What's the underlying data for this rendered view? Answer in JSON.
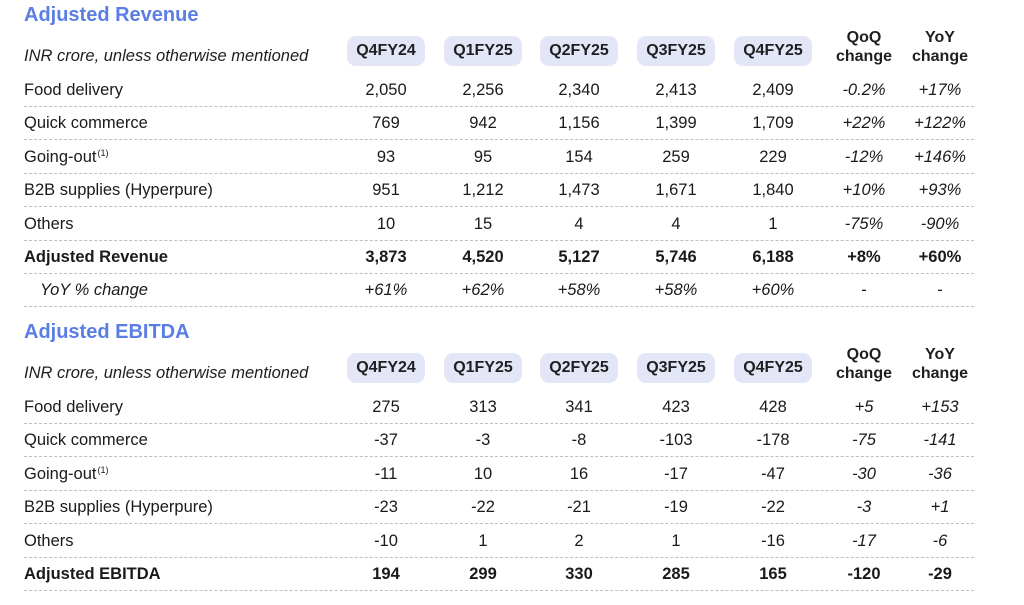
{
  "revenue": {
    "title": "Adjusted Revenue",
    "subtitle": "INR crore, unless otherwise mentioned",
    "periods": [
      "Q4FY24",
      "Q1FY25",
      "Q2FY25",
      "Q3FY25",
      "Q4FY25"
    ],
    "qoq_label": "QoQ\nchange",
    "yoy_label": "YoY\nchange",
    "rows": [
      {
        "label": "Food delivery",
        "sup": "",
        "values": [
          "2,050",
          "2,256",
          "2,340",
          "2,413",
          "2,409"
        ],
        "qoq": "-0.2%",
        "yoy": "+17%"
      },
      {
        "label": "Quick commerce",
        "sup": "",
        "values": [
          "769",
          "942",
          "1,156",
          "1,399",
          "1,709"
        ],
        "qoq": "+22%",
        "yoy": "+122%"
      },
      {
        "label": "Going-out",
        "sup": "(1)",
        "values": [
          "93",
          "95",
          "154",
          "259",
          "229"
        ],
        "qoq": "-12%",
        "yoy": "+146%"
      },
      {
        "label": "B2B supplies (Hyperpure)",
        "sup": "",
        "values": [
          "951",
          "1,212",
          "1,473",
          "1,671",
          "1,840"
        ],
        "qoq": "+10%",
        "yoy": "+93%"
      },
      {
        "label": "Others",
        "sup": "",
        "values": [
          "10",
          "15",
          "4",
          "4",
          "1"
        ],
        "qoq": "-75%",
        "yoy": "-90%"
      },
      {
        "label": "Adjusted Revenue",
        "sup": "",
        "values": [
          "3,873",
          "4,520",
          "5,127",
          "5,746",
          "6,188"
        ],
        "qoq": "+8%",
        "yoy": "+60%",
        "style": "bold"
      },
      {
        "label": "YoY % change",
        "sup": "",
        "values": [
          "+61%",
          "+62%",
          "+58%",
          "+58%",
          "+60%"
        ],
        "qoq": "-",
        "yoy": "-",
        "style": "ital"
      }
    ]
  },
  "ebitda": {
    "title": "Adjusted EBITDA",
    "subtitle": "INR crore, unless otherwise mentioned",
    "periods": [
      "Q4FY24",
      "Q1FY25",
      "Q2FY25",
      "Q3FY25",
      "Q4FY25"
    ],
    "qoq_label": "QoQ\nchange",
    "yoy_label": "YoY\nchange",
    "rows": [
      {
        "label": "Food delivery",
        "sup": "",
        "values": [
          "275",
          "313",
          "341",
          "423",
          "428"
        ],
        "qoq": "+5",
        "yoy": "+153"
      },
      {
        "label": "Quick commerce",
        "sup": "",
        "values": [
          "-37",
          "-3",
          "-8",
          "-103",
          "-178"
        ],
        "qoq": "-75",
        "yoy": "-141"
      },
      {
        "label": "Going-out",
        "sup": "(1)",
        "values": [
          "-11",
          "10",
          "16",
          "-17",
          "-47"
        ],
        "qoq": "-30",
        "yoy": "-36"
      },
      {
        "label": "B2B supplies (Hyperpure)",
        "sup": "",
        "values": [
          "-23",
          "-22",
          "-21",
          "-19",
          "-22"
        ],
        "qoq": "-3",
        "yoy": "+1"
      },
      {
        "label": "Others",
        "sup": "",
        "values": [
          "-10",
          "1",
          "2",
          "1",
          "-16"
        ],
        "qoq": "-17",
        "yoy": "-6"
      },
      {
        "label": "Adjusted EBITDA",
        "sup": "",
        "values": [
          "194",
          "299",
          "330",
          "285",
          "165"
        ],
        "qoq": "-120",
        "yoy": "-29",
        "style": "bold"
      }
    ]
  },
  "colors": {
    "title": "#5b7ee5",
    "pill": "#e3e6f7"
  }
}
